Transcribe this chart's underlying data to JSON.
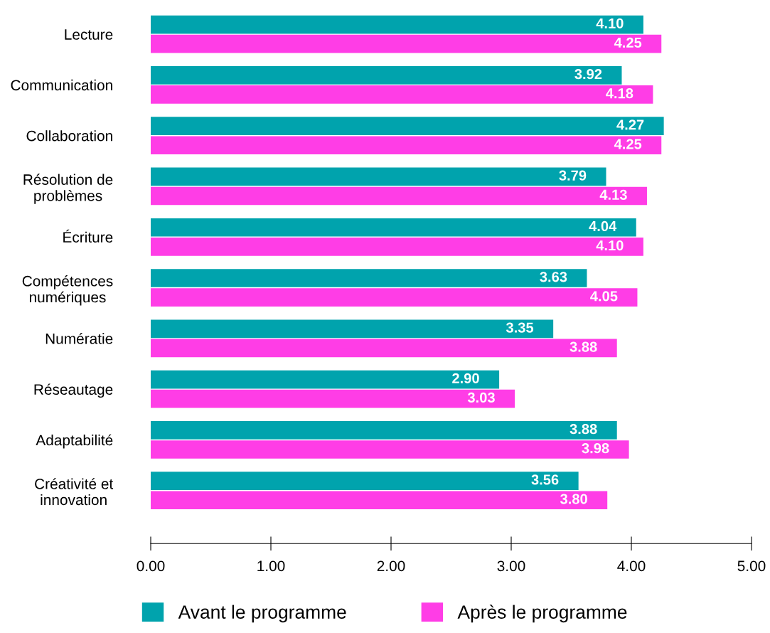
{
  "chart_data": {
    "type": "bar",
    "orientation": "horizontal",
    "categories": [
      "Lecture",
      "Communication",
      "Collaboration",
      "Résolution de\nproblèmes",
      "Écriture",
      "Compétences\nnumériques",
      "Numératie",
      "Réseautage",
      "Adaptabilité",
      "Créativité et\ninnovation"
    ],
    "series": [
      {
        "name": "Avant le programme",
        "color": "#00a3ad",
        "values": [
          4.1,
          3.92,
          4.27,
          3.79,
          4.04,
          3.63,
          3.35,
          2.9,
          3.88,
          3.56
        ],
        "value_labels": [
          "4.10",
          "3.92",
          "4.27",
          "3.79",
          "4.04",
          "3.63",
          "3.35",
          "2.90",
          "3.88",
          "3.56"
        ]
      },
      {
        "name": "Après le programme",
        "color": "#ff3de6",
        "values": [
          4.25,
          4.18,
          4.25,
          4.13,
          4.1,
          4.05,
          3.88,
          3.03,
          3.98,
          3.8
        ],
        "value_labels": [
          "4.25",
          "4.18",
          "4.25",
          "4.13",
          "4.10",
          "4.05",
          "3.88",
          "3.03",
          "3.98",
          "3.80"
        ]
      }
    ],
    "xlim": [
      0,
      5
    ],
    "xticks": [
      {
        "value": 0,
        "label": "0.00"
      },
      {
        "value": 1,
        "label": "1.00"
      },
      {
        "value": 2,
        "label": "2.00"
      },
      {
        "value": 3,
        "label": "3.00"
      },
      {
        "value": 4,
        "label": "4.00"
      },
      {
        "value": 5,
        "label": "5.00"
      }
    ],
    "grid": false,
    "legend": "bottom"
  }
}
